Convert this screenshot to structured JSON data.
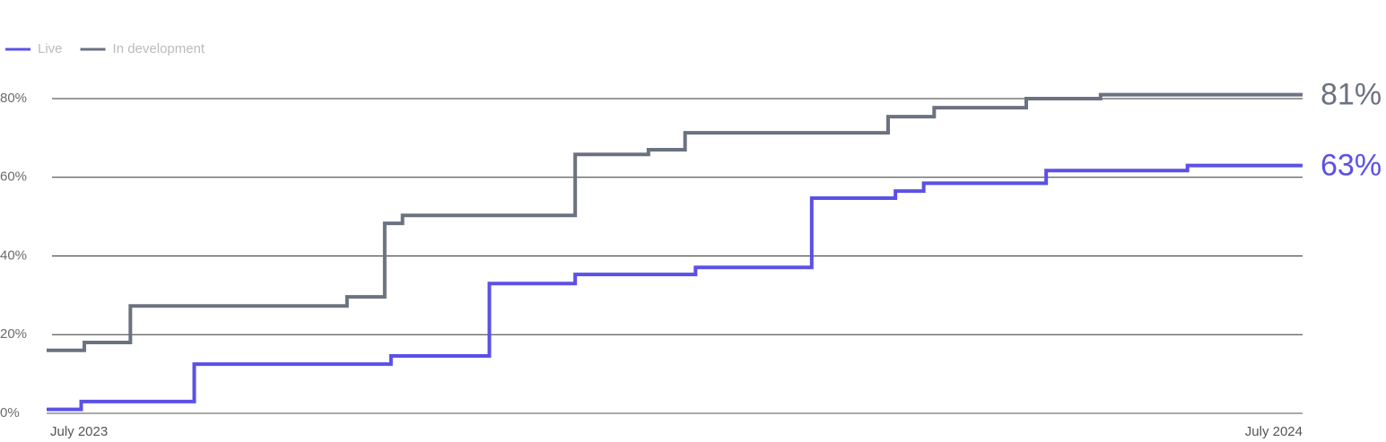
{
  "chart_data": {
    "type": "step",
    "xticks": [
      {
        "value": 0,
        "label": "July 2023"
      },
      {
        "value": 12,
        "label": "July 2024"
      }
    ],
    "xlim": [
      0,
      12
    ],
    "ylim": [
      0,
      80
    ],
    "yticks": [
      {
        "value": 0,
        "label": "0%"
      },
      {
        "value": 20,
        "label": "20%"
      },
      {
        "value": 40,
        "label": "40%"
      },
      {
        "value": 60,
        "label": "60%"
      },
      {
        "value": 80,
        "label": "80%"
      }
    ],
    "grid": true,
    "legend": "top-left",
    "series": [
      {
        "name": "Live",
        "color": "#5b50e6",
        "end_label": "63%",
        "x": [
          0,
          0.33,
          1.41,
          3.29,
          4.23,
          5.05,
          6.2,
          7.31,
          8.11,
          8.38,
          9.55,
          10.9,
          12
        ],
        "values": [
          1,
          3,
          12.5,
          14.6,
          33,
          35.3,
          37.1,
          54.7,
          56.5,
          58.5,
          61.7,
          63,
          63
        ]
      },
      {
        "name": "In development",
        "color": "#6b7280",
        "end_label": "81%",
        "x": [
          0,
          0.36,
          0.8,
          2.87,
          3.23,
          3.4,
          5.05,
          5.75,
          6.1,
          8.04,
          8.48,
          9.36,
          10.07,
          12
        ],
        "values": [
          16,
          18,
          27.3,
          29.6,
          48.3,
          50.3,
          65.8,
          67,
          71.3,
          75.4,
          77.7,
          80,
          81,
          81
        ]
      }
    ]
  }
}
